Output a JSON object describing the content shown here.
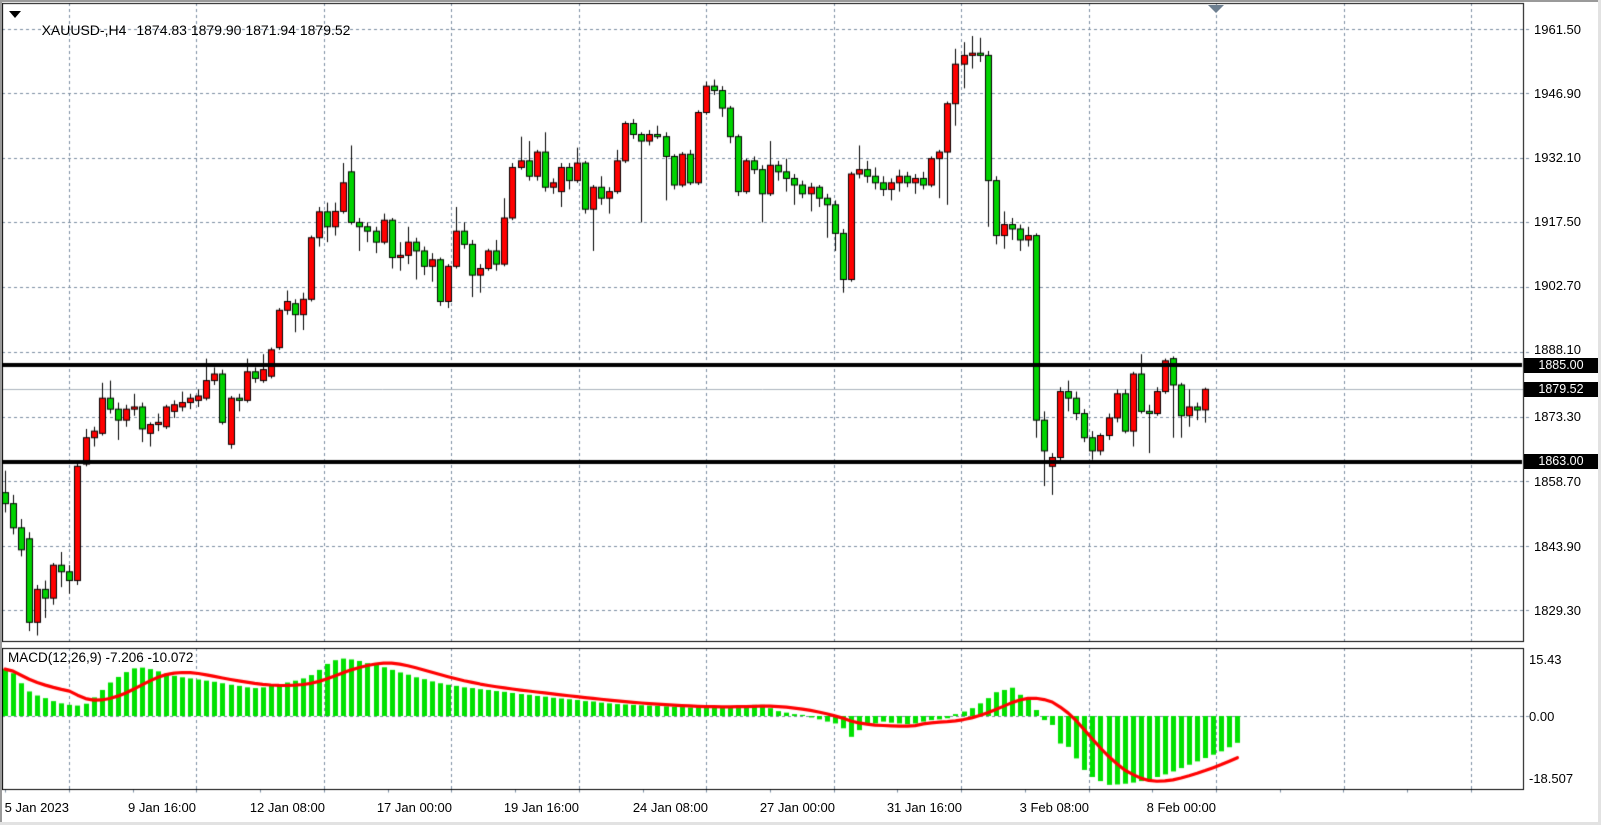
{
  "window": {
    "symbol_period": "XAUUSD-,H4",
    "quote_line": "1874.83 1879.90 1871.94 1879.52"
  },
  "chart_data": {
    "type": "candlestick",
    "title": "XAUUSD-,H4",
    "quote": {
      "open": "1874.83",
      "high": "1879.90",
      "low": "1871.94",
      "close": "1879.52"
    },
    "price_axis": {
      "ticks": [
        1961.5,
        1946.9,
        1932.1,
        1917.5,
        1902.7,
        1888.1,
        1873.3,
        1858.7,
        1843.9,
        1829.3
      ],
      "labels": [
        "1961.50",
        "1946.90",
        "1932.10",
        "1917.50",
        "1902.70",
        "1888.10",
        "1873.30",
        "1858.70",
        "1843.90",
        "1829.30"
      ],
      "range": [
        1823.5,
        1968.1
      ]
    },
    "time_axis": [
      "5 Jan 2023",
      "9 Jan 16:00",
      "12 Jan 08:00",
      "17 Jan 00:00",
      "19 Jan 16:00",
      "24 Jan 08:00",
      "27 Jan 00:00",
      "31 Jan 16:00",
      "3 Feb 08:00",
      "8 Feb 00:00"
    ],
    "hlines": [
      {
        "price": 1885.0,
        "label": "1885.00"
      },
      {
        "price": 1863.0,
        "label": "1863.00"
      }
    ],
    "price_line": {
      "price": 1879.52,
      "label": "1879.52"
    },
    "grid": true,
    "legend_position": "none",
    "candles": [
      [
        1856.0,
        1861.0,
        1851.5,
        1853.5
      ],
      [
        1853.5,
        1855.5,
        1846.5,
        1848.0
      ],
      [
        1848.0,
        1850.0,
        1841.5,
        1843.0
      ],
      [
        1845.5,
        1847.0,
        1824.5,
        1826.5
      ],
      [
        1826.5,
        1835.0,
        1823.5,
        1834.0
      ],
      [
        1834.0,
        1836.0,
        1827.5,
        1832.0
      ],
      [
        1832.0,
        1840.0,
        1830.5,
        1839.5
      ],
      [
        1839.5,
        1842.5,
        1834.5,
        1838.0
      ],
      [
        1838.0,
        1839.5,
        1833.0,
        1836.0
      ],
      [
        1836.0,
        1863.0,
        1835.0,
        1862.0
      ],
      [
        1862.5,
        1870.5,
        1862.0,
        1868.5
      ],
      [
        1868.5,
        1871.0,
        1866.5,
        1870.0
      ],
      [
        1869.5,
        1881.0,
        1869.0,
        1877.5
      ],
      [
        1877.5,
        1881.5,
        1874.0,
        1875.0
      ],
      [
        1875.0,
        1876.5,
        1868.0,
        1872.5
      ],
      [
        1872.5,
        1876.0,
        1871.0,
        1875.0
      ],
      [
        1875.0,
        1878.5,
        1873.5,
        1875.5
      ],
      [
        1875.5,
        1876.5,
        1867.5,
        1870.5
      ],
      [
        1869.5,
        1872.0,
        1866.5,
        1871.5
      ],
      [
        1871.5,
        1874.0,
        1870.0,
        1872.0
      ],
      [
        1871.0,
        1876.0,
        1870.5,
        1875.5
      ],
      [
        1874.5,
        1877.0,
        1873.0,
        1876.0
      ],
      [
        1875.5,
        1879.0,
        1874.5,
        1876.5
      ],
      [
        1876.5,
        1878.5,
        1875.0,
        1877.5
      ],
      [
        1877.0,
        1879.5,
        1875.5,
        1878.0
      ],
      [
        1877.5,
        1886.5,
        1877.0,
        1881.5
      ],
      [
        1881.5,
        1884.5,
        1880.5,
        1883.0
      ],
      [
        1883.0,
        1884.0,
        1871.5,
        1872.0
      ],
      [
        1867.0,
        1878.0,
        1866.0,
        1877.5
      ],
      [
        1877.5,
        1878.5,
        1874.5,
        1877.0
      ],
      [
        1877.0,
        1886.5,
        1876.5,
        1883.5
      ],
      [
        1883.5,
        1884.5,
        1881.0,
        1882.0
      ],
      [
        1881.5,
        1887.5,
        1881.0,
        1884.0
      ],
      [
        1882.5,
        1889.0,
        1882.0,
        1888.5
      ],
      [
        1889.0,
        1898.0,
        1888.5,
        1897.5
      ],
      [
        1897.5,
        1902.0,
        1896.5,
        1899.5
      ],
      [
        1899.0,
        1900.0,
        1892.5,
        1896.5
      ],
      [
        1896.5,
        1901.5,
        1893.0,
        1900.0
      ],
      [
        1900.0,
        1914.5,
        1899.5,
        1914.0
      ],
      [
        1914.0,
        1921.0,
        1912.0,
        1919.9
      ],
      [
        1919.9,
        1922.0,
        1913.0,
        1916.5
      ],
      [
        1916.5,
        1922.0,
        1914.5,
        1920.0
      ],
      [
        1920.0,
        1931.0,
        1919.5,
        1926.5
      ],
      [
        1929.0,
        1935.0,
        1917.0,
        1917.5
      ],
      [
        1917.5,
        1918.5,
        1911.0,
        1916.5
      ],
      [
        1916.5,
        1917.5,
        1913.0,
        1915.5
      ],
      [
        1915.5,
        1916.5,
        1910.5,
        1913.0
      ],
      [
        1913.0,
        1919.5,
        1912.5,
        1918.0
      ],
      [
        1918.0,
        1918.5,
        1907.0,
        1909.5
      ],
      [
        1909.5,
        1913.0,
        1906.5,
        1910.0
      ],
      [
        1910.0,
        1916.5,
        1908.0,
        1913.0
      ],
      [
        1913.0,
        1914.0,
        1904.5,
        1911.0
      ],
      [
        1911.0,
        1912.0,
        1905.5,
        1907.5
      ],
      [
        1907.5,
        1910.5,
        1904.0,
        1909.0
      ],
      [
        1909.0,
        1909.5,
        1898.5,
        1899.5
      ],
      [
        1899.5,
        1908.0,
        1898.0,
        1907.5
      ],
      [
        1907.5,
        1921.0,
        1907.0,
        1915.5
      ],
      [
        1915.5,
        1917.5,
        1911.5,
        1912.5
      ],
      [
        1912.5,
        1913.5,
        1900.5,
        1905.5
      ],
      [
        1905.5,
        1908.0,
        1901.5,
        1907.0
      ],
      [
        1907.0,
        1911.5,
        1906.5,
        1911.0
      ],
      [
        1911.0,
        1913.5,
        1906.5,
        1908.0
      ],
      [
        1908.0,
        1923.0,
        1907.5,
        1918.5
      ],
      [
        1918.5,
        1931.0,
        1918.0,
        1930.0
      ],
      [
        1930.0,
        1937.0,
        1929.5,
        1931.5
      ],
      [
        1931.5,
        1936.0,
        1927.0,
        1928.0
      ],
      [
        1928.0,
        1934.0,
        1927.0,
        1933.5
      ],
      [
        1933.5,
        1938.0,
        1924.5,
        1925.5
      ],
      [
        1925.5,
        1927.5,
        1924.0,
        1926.5
      ],
      [
        1924.5,
        1931.0,
        1921.0,
        1930.0
      ],
      [
        1930.0,
        1931.0,
        1925.0,
        1927.0
      ],
      [
        1927.0,
        1934.5,
        1926.5,
        1931.0
      ],
      [
        1931.0,
        1931.5,
        1919.5,
        1920.5
      ],
      [
        1920.5,
        1926.0,
        1911.0,
        1925.5
      ],
      [
        1925.5,
        1928.0,
        1921.5,
        1923.0
      ],
      [
        1923.0,
        1925.5,
        1919.5,
        1924.5
      ],
      [
        1924.5,
        1934.0,
        1924.0,
        1931.5
      ],
      [
        1931.5,
        1940.5,
        1931.0,
        1940.0
      ],
      [
        1940.0,
        1941.0,
        1936.5,
        1937.5
      ],
      [
        1937.5,
        1938.0,
        1917.5,
        1936.0
      ],
      [
        1936.0,
        1938.5,
        1935.0,
        1937.5
      ],
      [
        1937.5,
        1939.5,
        1936.5,
        1937.0
      ],
      [
        1937.0,
        1938.0,
        1922.5,
        1932.5
      ],
      [
        1932.5,
        1933.0,
        1925.0,
        1926.0
      ],
      [
        1926.0,
        1933.5,
        1925.5,
        1933.0
      ],
      [
        1933.0,
        1934.0,
        1926.0,
        1926.5
      ],
      [
        1926.5,
        1943.0,
        1926.0,
        1942.5
      ],
      [
        1942.5,
        1949.5,
        1942.0,
        1948.5
      ],
      [
        1948.5,
        1950.0,
        1946.5,
        1947.5
      ],
      [
        1947.5,
        1948.5,
        1941.5,
        1943.5
      ],
      [
        1943.5,
        1944.0,
        1935.5,
        1937.0
      ],
      [
        1937.0,
        1937.5,
        1923.5,
        1924.5
      ],
      [
        1924.5,
        1932.0,
        1924.0,
        1931.5
      ],
      [
        1931.5,
        1932.5,
        1928.5,
        1929.5
      ],
      [
        1929.5,
        1930.5,
        1917.5,
        1924.0
      ],
      [
        1924.0,
        1936.0,
        1923.5,
        1930.5
      ],
      [
        1930.5,
        1931.5,
        1927.0,
        1929.0
      ],
      [
        1929.0,
        1932.0,
        1924.5,
        1927.5
      ],
      [
        1927.5,
        1928.5,
        1921.5,
        1926.0
      ],
      [
        1926.0,
        1927.0,
        1923.0,
        1924.0
      ],
      [
        1924.0,
        1926.5,
        1920.0,
        1925.5
      ],
      [
        1925.5,
        1926.0,
        1921.0,
        1923.0
      ],
      [
        1923.0,
        1924.0,
        1914.0,
        1921.5
      ],
      [
        1921.5,
        1922.5,
        1911.0,
        1915.0
      ],
      [
        1915.0,
        1916.0,
        1901.5,
        1904.5
      ],
      [
        1904.5,
        1929.0,
        1904.0,
        1928.5
      ],
      [
        1928.5,
        1935.0,
        1927.5,
        1929.5
      ],
      [
        1929.5,
        1931.5,
        1926.5,
        1928.0
      ],
      [
        1928.0,
        1930.0,
        1925.0,
        1926.5
      ],
      [
        1926.5,
        1928.0,
        1923.5,
        1925.0
      ],
      [
        1925.0,
        1927.5,
        1922.5,
        1926.5
      ],
      [
        1926.5,
        1929.5,
        1924.5,
        1928.0
      ],
      [
        1928.0,
        1929.0,
        1925.5,
        1926.5
      ],
      [
        1926.5,
        1928.5,
        1924.0,
        1927.5
      ],
      [
        1927.5,
        1929.0,
        1925.0,
        1926.0
      ],
      [
        1926.0,
        1932.5,
        1925.5,
        1932.0
      ],
      [
        1932.0,
        1934.0,
        1923.0,
        1933.5
      ],
      [
        1933.5,
        1945.0,
        1921.5,
        1944.5
      ],
      [
        1944.5,
        1957.0,
        1939.5,
        1953.5
      ],
      [
        1953.5,
        1958.5,
        1948.0,
        1955.5
      ],
      [
        1955.5,
        1959.9,
        1952.5,
        1956.0
      ],
      [
        1956.0,
        1959.5,
        1954.0,
        1955.5
      ],
      [
        1955.5,
        1956.5,
        1916.5,
        1927.0
      ],
      [
        1927.0,
        1928.0,
        1912.5,
        1914.5
      ],
      [
        1914.5,
        1920.0,
        1911.5,
        1917.0
      ],
      [
        1917.0,
        1918.5,
        1913.5,
        1916.0
      ],
      [
        1916.0,
        1917.0,
        1911.0,
        1913.5
      ],
      [
        1913.5,
        1916.5,
        1912.0,
        1914.5
      ],
      [
        1914.5,
        1915.0,
        1868.5,
        1872.5
      ],
      [
        1872.5,
        1874.5,
        1857.5,
        1865.5
      ],
      [
        1862.0,
        1865.0,
        1855.5,
        1864.0
      ],
      [
        1864.0,
        1880.0,
        1863.0,
        1879.0
      ],
      [
        1879.0,
        1881.5,
        1874.5,
        1877.5
      ],
      [
        1877.5,
        1879.0,
        1872.5,
        1874.0
      ],
      [
        1874.0,
        1875.0,
        1867.5,
        1868.5
      ],
      [
        1868.5,
        1870.0,
        1863.5,
        1865.5
      ],
      [
        1865.5,
        1869.5,
        1864.5,
        1869.0
      ],
      [
        1869.0,
        1874.0,
        1868.0,
        1873.0
      ],
      [
        1873.0,
        1879.5,
        1872.0,
        1878.5
      ],
      [
        1878.5,
        1879.5,
        1869.5,
        1870.0
      ],
      [
        1870.0,
        1883.5,
        1866.5,
        1883.0
      ],
      [
        1883.0,
        1887.5,
        1874.0,
        1874.5
      ],
      [
        1874.5,
        1876.0,
        1865.0,
        1874.0
      ],
      [
        1874.0,
        1880.0,
        1873.5,
        1879.0
      ],
      [
        1879.0,
        1886.5,
        1878.5,
        1886.0
      ],
      [
        1886.5,
        1887.0,
        1868.5,
        1880.5
      ],
      [
        1880.5,
        1881.0,
        1868.5,
        1873.5
      ],
      [
        1873.5,
        1879.5,
        1871.0,
        1875.5
      ],
      [
        1875.5,
        1876.5,
        1872.5,
        1874.8
      ],
      [
        1874.83,
        1879.9,
        1871.94,
        1879.52
      ]
    ],
    "macd": {
      "title": "MACD(12,26,9) -7.206 -10.072",
      "macd_value": -7.206,
      "signal_value": -10.072,
      "signal_period": 9,
      "axis_labels": [
        "15.43",
        "0.00",
        "-18.507"
      ],
      "axis_max": 15.43,
      "axis_min": -18.507,
      "histogram": [
        12.6,
        11.5,
        8.8,
        6.6,
        5.5,
        4.8,
        4.0,
        3.4,
        3.0,
        2.8,
        3.3,
        5.0,
        7.0,
        9.0,
        10.5,
        11.8,
        12.8,
        13.0,
        12.6,
        12.0,
        11.4,
        10.8,
        10.4,
        10.1,
        9.8,
        9.5,
        9.2,
        8.8,
        8.4,
        8.1,
        7.7,
        7.5,
        7.7,
        8.1,
        8.5,
        9.0,
        9.5,
        10.1,
        11.0,
        12.4,
        14.0,
        15.0,
        15.43,
        15.2,
        14.8,
        14.2,
        13.7,
        13.1,
        12.4,
        11.7,
        11.1,
        10.4,
        9.9,
        9.3,
        8.8,
        8.4,
        8.1,
        7.7,
        7.5,
        7.2,
        7.0,
        6.7,
        6.5,
        6.2,
        5.9,
        5.7,
        5.4,
        5.2,
        4.9,
        4.7,
        4.5,
        4.3,
        4.0,
        3.9,
        3.6,
        3.4,
        3.2,
        3.1,
        3.0,
        2.9,
        2.8,
        2.7,
        2.6,
        2.5,
        2.4,
        2.3,
        2.3,
        2.4,
        2.5,
        2.6,
        2.7,
        2.8,
        2.9,
        3.0,
        3.0,
        2.1,
        1.3,
        0.9,
        0.5,
        0.3,
        -0.4,
        -0.9,
        -1.5,
        -2.0,
        -3.3,
        -5.6,
        -3.8,
        -2.4,
        -2.0,
        -1.5,
        -1.8,
        -2.0,
        -2.2,
        -2.0,
        -1.5,
        -1.1,
        -0.9,
        -0.6,
        0.5,
        1.2,
        2.1,
        3.4,
        4.8,
        6.4,
        7.0,
        7.6,
        5.7,
        4.3,
        1.6,
        -1.1,
        -2.4,
        -7.4,
        -8.3,
        -11.4,
        -14.5,
        -16.4,
        -17.5,
        -18.507,
        -18.4,
        -18.2,
        -17.9,
        -17.5,
        -17.0,
        -16.4,
        -15.7,
        -14.9,
        -14.0,
        -13.1,
        -12.2,
        -11.3,
        -10.4,
        -9.5,
        -8.4,
        -7.206
      ]
    },
    "colors": {
      "up": "#ff0000",
      "down": "#00d300",
      "wick": "#000000",
      "grid": "#7b8ea2",
      "hline": "#000000",
      "price_line": "#aab3bd",
      "macd_bar": "#00e100",
      "macd_signal": "#ff0000",
      "background": "#ffffff",
      "tag_bg": "#000000",
      "tag_fg": "#ffffff"
    }
  }
}
